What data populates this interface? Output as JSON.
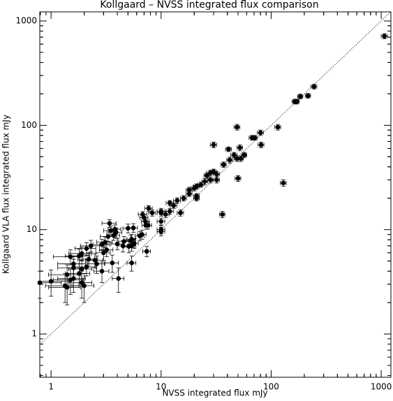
{
  "chart_data": {
    "type": "scatter",
    "title": "Kollgaard – NVSS integrated flux comparison",
    "x_label": "NVSS integrated flux mJy",
    "y_label": "Kollgaard VLA flux integrated flux mJy",
    "log_x": true,
    "log_y": true,
    "xlim": [
      0.79,
      1225
    ],
    "ylim": [
      0.385,
      1222
    ],
    "xticks": [
      1,
      10,
      100,
      1000
    ],
    "yticks": [
      1,
      10,
      100,
      1000
    ],
    "minor_ticks": true,
    "identity_line": true,
    "series": [
      {
        "color": "#000000",
        "x": [
          1070,
          245,
          184,
          216,
          171,
          164,
          115,
          129,
          49,
          80,
          71,
          67,
          81,
          30,
          52,
          41,
          46,
          57,
          49,
          53,
          42,
          37,
          50,
          36,
          30,
          32,
          28,
          26,
          28,
          32,
          25,
          23,
          21,
          20,
          18,
          18,
          21,
          21,
          16,
          14,
          12,
          13,
          12,
          15,
          11,
          10,
          10,
          10,
          10,
          10,
          7.7,
          6.8,
          7,
          7.2,
          7.3,
          7.6,
          7.4,
          6.7,
          8.3,
          6.4,
          5.7,
          5.4,
          5.3,
          5.4,
          5.6,
          5,
          4.6,
          4.5,
          5.1,
          5.4,
          4,
          3.9,
          3.8,
          3.7,
          3.4,
          3.5,
          3.3,
          3.1,
          2.9,
          2.3,
          2.5,
          2.1,
          2.2,
          2.1,
          1.9,
          1.8,
          1.5,
          1.6,
          1.6,
          1.6,
          1.5,
          1.8,
          1.9,
          2,
          2.6,
          2.9,
          3,
          3.2,
          3.6,
          4.1,
          1.34,
          1.4,
          1.4,
          1.0,
          0.79,
          1.9
        ],
        "y": [
          715,
          235,
          189,
          192,
          169,
          169,
          96,
          28,
          96,
          85,
          76,
          76,
          65,
          65,
          61,
          59,
          52,
          52,
          48,
          48,
          46.5,
          42,
          31,
          14,
          36,
          34,
          35,
          33,
          30,
          30,
          29,
          27,
          26,
          25,
          24,
          22,
          20,
          21,
          20,
          19,
          18,
          17,
          15,
          14.5,
          14,
          15,
          14.5,
          12,
          10,
          9.6,
          16,
          14,
          13,
          12,
          11,
          11,
          6.2,
          9,
          14.5,
          8.7,
          7.4,
          8.1,
          7.9,
          7,
          10.4,
          10.3,
          7.7,
          7,
          6.9,
          4.8,
          7.3,
          9.4,
          10.1,
          8.8,
          11.5,
          9.8,
          8.6,
          7.6,
          7.2,
          7,
          5.1,
          6.6,
          5.2,
          4.4,
          5.9,
          5.6,
          5.5,
          4.7,
          4.3,
          3.4,
          3.3,
          3.8,
          3.1,
          2.9,
          4.7,
          4,
          6,
          6.4,
          4.8,
          3.4,
          2.9,
          2.8,
          3.7,
          3.2,
          3.1,
          4.2
        ],
        "xerr": [
          70,
          15,
          10,
          12,
          9,
          9,
          7,
          8,
          3,
          5,
          4,
          4,
          5,
          2,
          3,
          2.5,
          3,
          3,
          3,
          3,
          2.5,
          2,
          3,
          2,
          2,
          2,
          2,
          1.5,
          1.5,
          2,
          1.5,
          1.5,
          1.2,
          1.2,
          1.1,
          1.1,
          1.2,
          1.2,
          1,
          1,
          0.9,
          0.9,
          0.9,
          1,
          0.8,
          0.8,
          0.8,
          0.8,
          0.8,
          0.8,
          0.6,
          0.6,
          0.6,
          0.6,
          0.6,
          0.6,
          0.6,
          0.6,
          0.6,
          0.6,
          0.5,
          0.5,
          0.5,
          0.5,
          0.5,
          0.5,
          0.5,
          0.5,
          0.5,
          0.5,
          0.5,
          0.5,
          0.5,
          0.5,
          0.5,
          0.5,
          0.5,
          0.5,
          0.5,
          0.45,
          0.45,
          0.45,
          0.45,
          0.45,
          0.45,
          0.45,
          0.45,
          0.45,
          0.45,
          0.45,
          0.45,
          0.45,
          0.45,
          0.45,
          0.45,
          0.45,
          0.45,
          0.45,
          0.5,
          0.5,
          0.45,
          0.45,
          0.45,
          0.45,
          0.45,
          0.45
        ],
        "yerr": [
          40,
          12,
          10,
          10,
          9,
          9,
          6,
          2,
          6,
          5,
          4,
          4,
          4,
          4,
          4,
          3,
          3,
          3,
          3,
          3,
          3,
          2.5,
          2,
          1,
          2,
          2,
          2,
          2,
          2,
          2,
          2,
          1.5,
          1.5,
          1.5,
          1.5,
          1.2,
          1.2,
          1.2,
          1.2,
          1.2,
          1,
          1,
          1,
          1,
          1,
          1,
          1,
          0.9,
          0.9,
          0.9,
          1,
          0.9,
          0.9,
          0.9,
          0.9,
          0.9,
          0.7,
          0.9,
          1,
          0.9,
          0.8,
          0.9,
          0.9,
          0.8,
          1,
          1,
          0.9,
          0.9,
          0.9,
          0.8,
          0.9,
          1,
          1,
          0.9,
          1,
          1,
          0.9,
          0.9,
          0.9,
          0.9,
          0.8,
          0.9,
          0.8,
          0.8,
          0.9,
          0.9,
          0.9,
          0.9,
          0.9,
          0.9,
          0.9,
          0.9,
          0.9,
          0.9,
          0.9,
          0.9,
          0.9,
          0.9,
          0.9,
          0.9,
          0.9,
          0.9,
          0.9,
          0.9,
          0.9,
          0.9
        ]
      }
    ]
  }
}
